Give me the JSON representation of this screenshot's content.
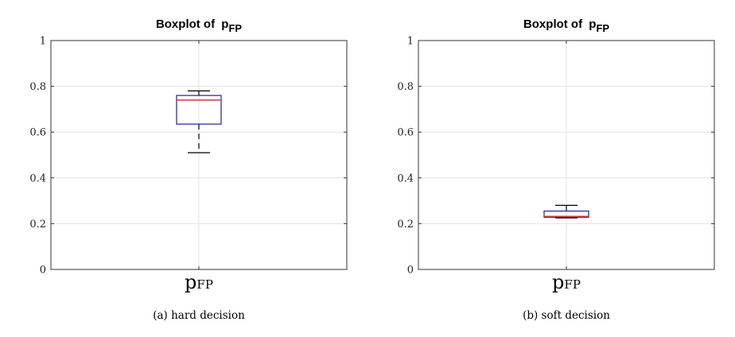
{
  "chart_data": [
    {
      "type": "boxplot",
      "title": "Boxplot of ",
      "title_var": "p",
      "title_sub": "FP",
      "category_label": "p",
      "category_sub": "FP",
      "caption": "(a) hard decision",
      "ylim": [
        0,
        1
      ],
      "yticks": [
        0,
        0.2,
        0.4,
        0.6,
        0.8,
        1
      ],
      "ytick_labels": [
        "0",
        "0.2",
        "0.4",
        "0.6",
        "0.8",
        "1"
      ],
      "grid": true,
      "box": {
        "min": 0.51,
        "q1": 0.635,
        "median": 0.74,
        "q3": 0.76,
        "max": 0.78
      },
      "colors": {
        "box": "#1f1fa0",
        "median": "#e23030",
        "whisker": "#000000"
      }
    },
    {
      "type": "boxplot",
      "title": "Boxplot of ",
      "title_var": "p",
      "title_sub": "FP",
      "category_label": "p",
      "category_sub": "FP",
      "caption": "(b) soft decision",
      "ylim": [
        0,
        1
      ],
      "yticks": [
        0,
        0.2,
        0.4,
        0.6,
        0.8,
        1
      ],
      "ytick_labels": [
        "0",
        "0.2",
        "0.4",
        "0.6",
        "0.8",
        "1"
      ],
      "grid": true,
      "box": {
        "min": 0.225,
        "q1": 0.228,
        "median": 0.232,
        "q3": 0.255,
        "max": 0.28
      },
      "colors": {
        "box": "#1f1fa0",
        "median": "#e23030",
        "whisker": "#000000"
      }
    }
  ]
}
